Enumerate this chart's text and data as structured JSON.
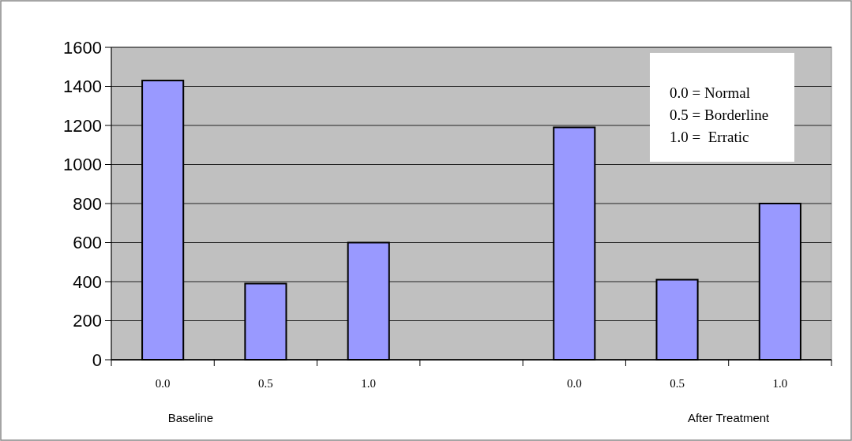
{
  "chart_data": {
    "type": "bar",
    "categories": [
      "0.0",
      "0.5",
      "1.0",
      null,
      "0.0",
      "0.5",
      "1.0"
    ],
    "values": [
      1430,
      390,
      600,
      null,
      1190,
      410,
      800
    ],
    "color": "#9999ff",
    "ylim": [
      0,
      1600
    ],
    "yticks": [
      0,
      200,
      400,
      600,
      800,
      1000,
      1200,
      1400,
      1600
    ],
    "grid": "y",
    "annotations": [
      "Baseline",
      "After Treatment",
      "0.0 = Normal",
      "0.5 = Borderline",
      "1.0 =  Erratic"
    ]
  }
}
